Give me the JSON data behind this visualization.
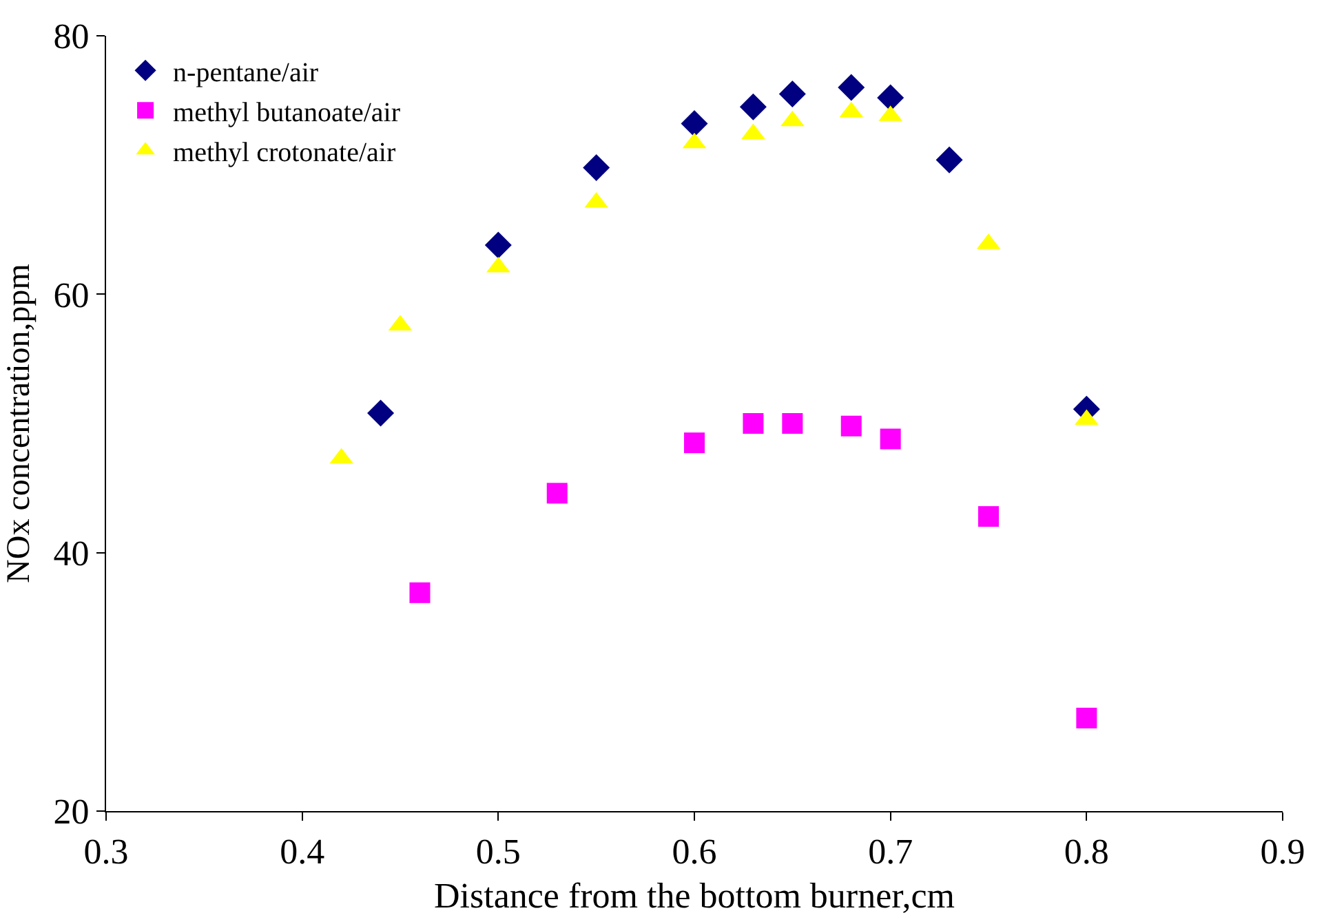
{
  "chart_data": {
    "type": "scatter",
    "xlabel": "Distance from the bottom burner,cm",
    "ylabel": "NOx concentration,ppm",
    "xlim": [
      0.3,
      0.9
    ],
    "xticks": [
      {
        "value": 0.3,
        "label": "0.3"
      },
      {
        "value": 0.4,
        "label": "0.4"
      },
      {
        "value": 0.5,
        "label": "0.5"
      },
      {
        "value": 0.6,
        "label": "0.6"
      },
      {
        "value": 0.7,
        "label": "0.7"
      },
      {
        "value": 0.8,
        "label": "0.8"
      },
      {
        "value": 0.9,
        "label": "0.9"
      }
    ],
    "ylim": [
      20,
      80
    ],
    "yticks": [
      20,
      40,
      60,
      80
    ],
    "legend": "top left",
    "series": [
      {
        "name": "n-pentane/air",
        "color": "#000080",
        "marker": "diamond",
        "x": [
          0.44,
          0.5,
          0.55,
          0.6,
          0.63,
          0.65,
          0.68,
          0.7,
          0.73,
          0.8
        ],
        "values": [
          50.8,
          63.8,
          69.8,
          73.2,
          74.5,
          75.5,
          76.0,
          75.2,
          70.4,
          51.1
        ]
      },
      {
        "name": "methyl butanoate/air",
        "color": "#ff00ff",
        "marker": "square",
        "x": [
          0.46,
          0.53,
          0.6,
          0.63,
          0.65,
          0.68,
          0.7,
          0.75,
          0.8
        ],
        "values": [
          36.9,
          44.6,
          48.5,
          50.0,
          50.0,
          49.8,
          48.8,
          42.8,
          27.2
        ]
      },
      {
        "name": "methyl crotonate/air",
        "color": "#ffff00",
        "marker": "triangle",
        "x": [
          0.42,
          0.45,
          0.5,
          0.55,
          0.6,
          0.63,
          0.65,
          0.68,
          0.7,
          0.75,
          0.8
        ],
        "values": [
          47.3,
          57.6,
          62.1,
          67.1,
          71.7,
          72.4,
          73.4,
          74.1,
          73.8,
          63.9,
          50.3
        ]
      }
    ]
  }
}
